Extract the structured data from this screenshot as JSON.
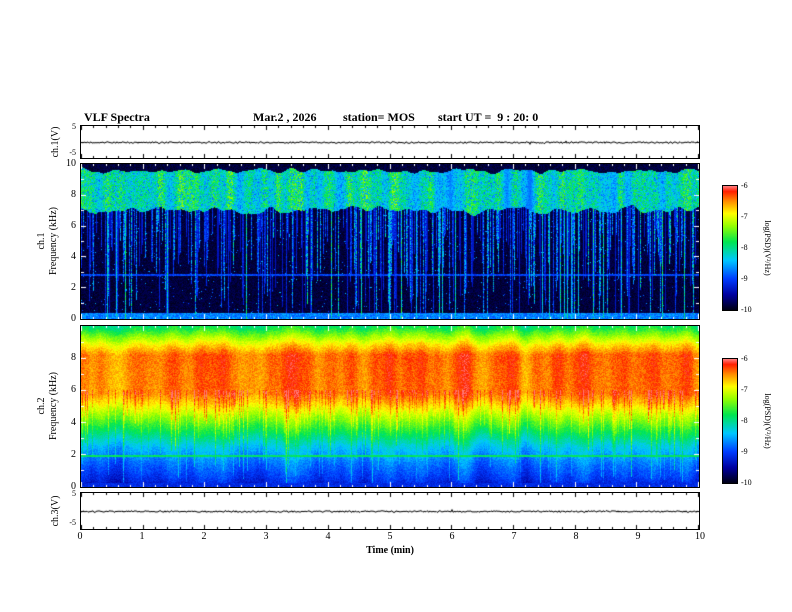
{
  "header": {
    "title": "VLF Spectra",
    "date": "Mar.2 , 2026",
    "station": "station= MOS",
    "start_ut": "start UT =  9 : 20: 0"
  },
  "panels": {
    "ch1_wave": {
      "ylabel": "ch.1(V)",
      "ytick_top": "5",
      "ytick_bottom": "-5"
    },
    "ch1_spec": {
      "ylabel_line1": "ch.1",
      "ylabel_line2": "Frequency (kHz)",
      "yticks": [
        "10",
        "8",
        "6",
        "4",
        "2",
        "0"
      ]
    },
    "ch2_spec": {
      "ylabel_line1": "ch.2",
      "ylabel_line2": "Frequency (kHz)",
      "yticks": [
        "8",
        "6",
        "4",
        "2",
        "0"
      ]
    },
    "ch3_wave": {
      "ylabel": "ch.3(V)",
      "ytick_top": "5",
      "ytick_bottom": "-5"
    }
  },
  "xaxis": {
    "label": "Time (min)",
    "ticks": [
      "0",
      "1",
      "2",
      "3",
      "4",
      "5",
      "6",
      "7",
      "8",
      "9",
      "10"
    ],
    "range_min": [
      0,
      10
    ]
  },
  "colorbars": [
    {
      "label": "log(PSD)(V²/Hz)",
      "ticks": [
        "-6",
        "-7",
        "-8",
        "-9",
        "-10"
      ],
      "range": [
        -6,
        -10
      ]
    },
    {
      "label": "log(PSD)(V²/Hz)",
      "ticks": [
        "-6",
        "-7",
        "-8",
        "-9",
        "-10"
      ],
      "range": [
        -6,
        -10
      ]
    }
  ],
  "chart_data": [
    {
      "type": "line",
      "name": "ch1-voltage-trace",
      "ylabel": "ch.1(V)",
      "y_range": [
        -5,
        5
      ],
      "x_range_min": [
        0,
        10
      ],
      "values_summary": "near-flat trace at ~0 V for the whole 10-minute record with tiny noise"
    },
    {
      "type": "heatmap",
      "name": "ch1-spectrogram",
      "x_range_min": [
        0,
        10
      ],
      "y_range_khz": [
        0,
        10
      ],
      "z_label": "log(PSD)(V^2/Hz)",
      "z_range": [
        -10,
        -6
      ],
      "features": [
        "continuous dense speckled green-yellow emission band between ~7 and ~9.5 kHz",
        "frequent impulsive vertical streaks (sferics) extending from the band down toward 0 kHz",
        "occasional bright green streaks reaching the bottom of the panel",
        "weak blue band below ~0.4 kHz and faint blue horizontal line near 2.9 kHz",
        "background level near -10 (black)"
      ]
    },
    {
      "type": "heatmap",
      "name": "ch2-spectrogram",
      "x_range_min": [
        0,
        10
      ],
      "y_range_khz": [
        0,
        10
      ],
      "z_label": "log(PSD)(V^2/Hz)",
      "z_range": [
        -10,
        -6
      ],
      "features": [
        "intense red/orange band from ~5.5 to ~8.5 kHz peaking near -6.3 with vertical striations",
        "yellow-green transition between ~3 and ~5 kHz",
        "cyan/blue region below ~2.5 kHz with many green vertical streaks",
        "green-cyan band above ~9 kHz",
        "thin light horizontal line near 2 kHz and dark blue strip below 0.3 kHz"
      ]
    },
    {
      "type": "line",
      "name": "ch3-voltage-trace",
      "ylabel": "ch.3(V)",
      "y_range": [
        -5,
        5
      ],
      "x_range_min": [
        0,
        10
      ],
      "values_summary": "near-flat trace at ~0 V for the whole 10-minute record with tiny noise"
    }
  ]
}
